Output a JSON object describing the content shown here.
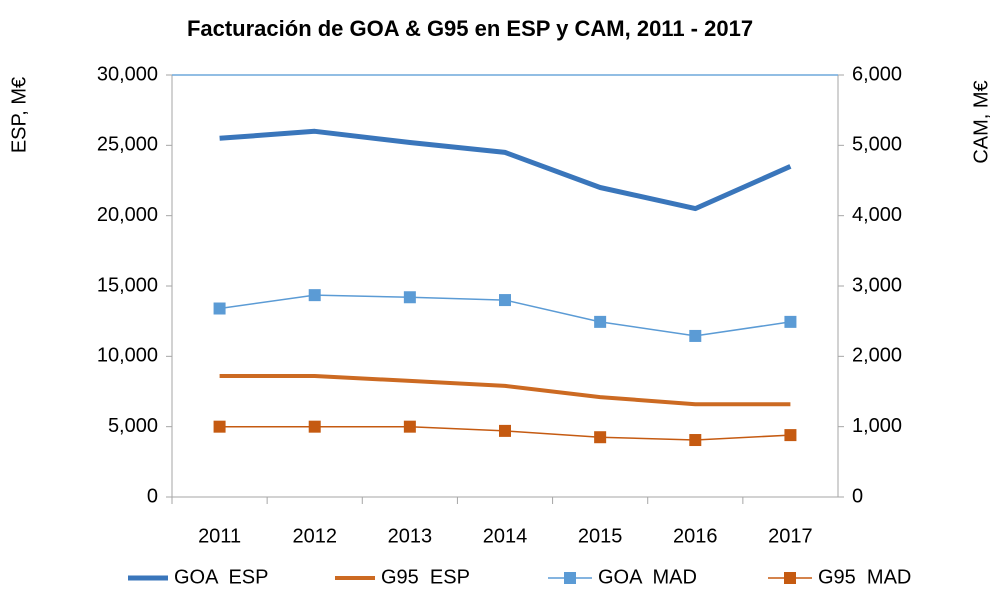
{
  "chart_data": {
    "type": "line",
    "title": "Facturación de GOA & G95 en ESP y CAM, 2011 - 2017",
    "y_label": "ESP, M€",
    "y2_label": "CAM, M€",
    "categories": [
      "2011",
      "2012",
      "2013",
      "2014",
      "2015",
      "2016",
      "2017"
    ],
    "series": [
      {
        "name": "GOA  ESP",
        "color": "#3a76bb",
        "width": 5,
        "marker": false,
        "values": [
          25500,
          26000,
          25200,
          24500,
          22000,
          20500,
          23500
        ]
      },
      {
        "name": "G95  ESP",
        "color": "#cc6a22",
        "width": 4,
        "marker": false,
        "values": [
          8600,
          8600,
          8250,
          7900,
          7100,
          6600,
          6600
        ]
      },
      {
        "name": "GOA  MAD",
        "color": "#5b9bd5",
        "width": 1.5,
        "marker": true,
        "axis": "y2",
        "values": [
          2680,
          2870,
          2840,
          2800,
          2490,
          2290,
          2490
        ]
      },
      {
        "name": "G95  MAD",
        "color": "#c55a11",
        "width": 1.5,
        "marker": true,
        "axis": "y2",
        "values": [
          1000,
          1000,
          1000,
          940,
          850,
          810,
          880
        ]
      }
    ],
    "ylim": [
      0,
      30000
    ],
    "yticks": [
      0,
      {
        "value": 5000,
        "label": "5,000"
      },
      {
        "value": 10000,
        "label": "10,000"
      },
      {
        "value": 15000,
        "label": "15,000"
      },
      {
        "value": 20000,
        "label": "20,000"
      },
      {
        "value": 25000,
        "label": "25,000"
      },
      {
        "value": 30000,
        "label": "30,000"
      }
    ],
    "y2lim": [
      0,
      6000
    ],
    "y2ticks": [
      0,
      {
        "value": 1000,
        "label": "1,000"
      },
      {
        "value": 2000,
        "label": "2,000"
      },
      {
        "value": 3000,
        "label": "3,000"
      },
      {
        "value": 4000,
        "label": "4,000"
      },
      {
        "value": 5000,
        "label": "5,000"
      },
      {
        "value": 6000,
        "label": "6,000"
      }
    ],
    "legend": "bottom"
  }
}
